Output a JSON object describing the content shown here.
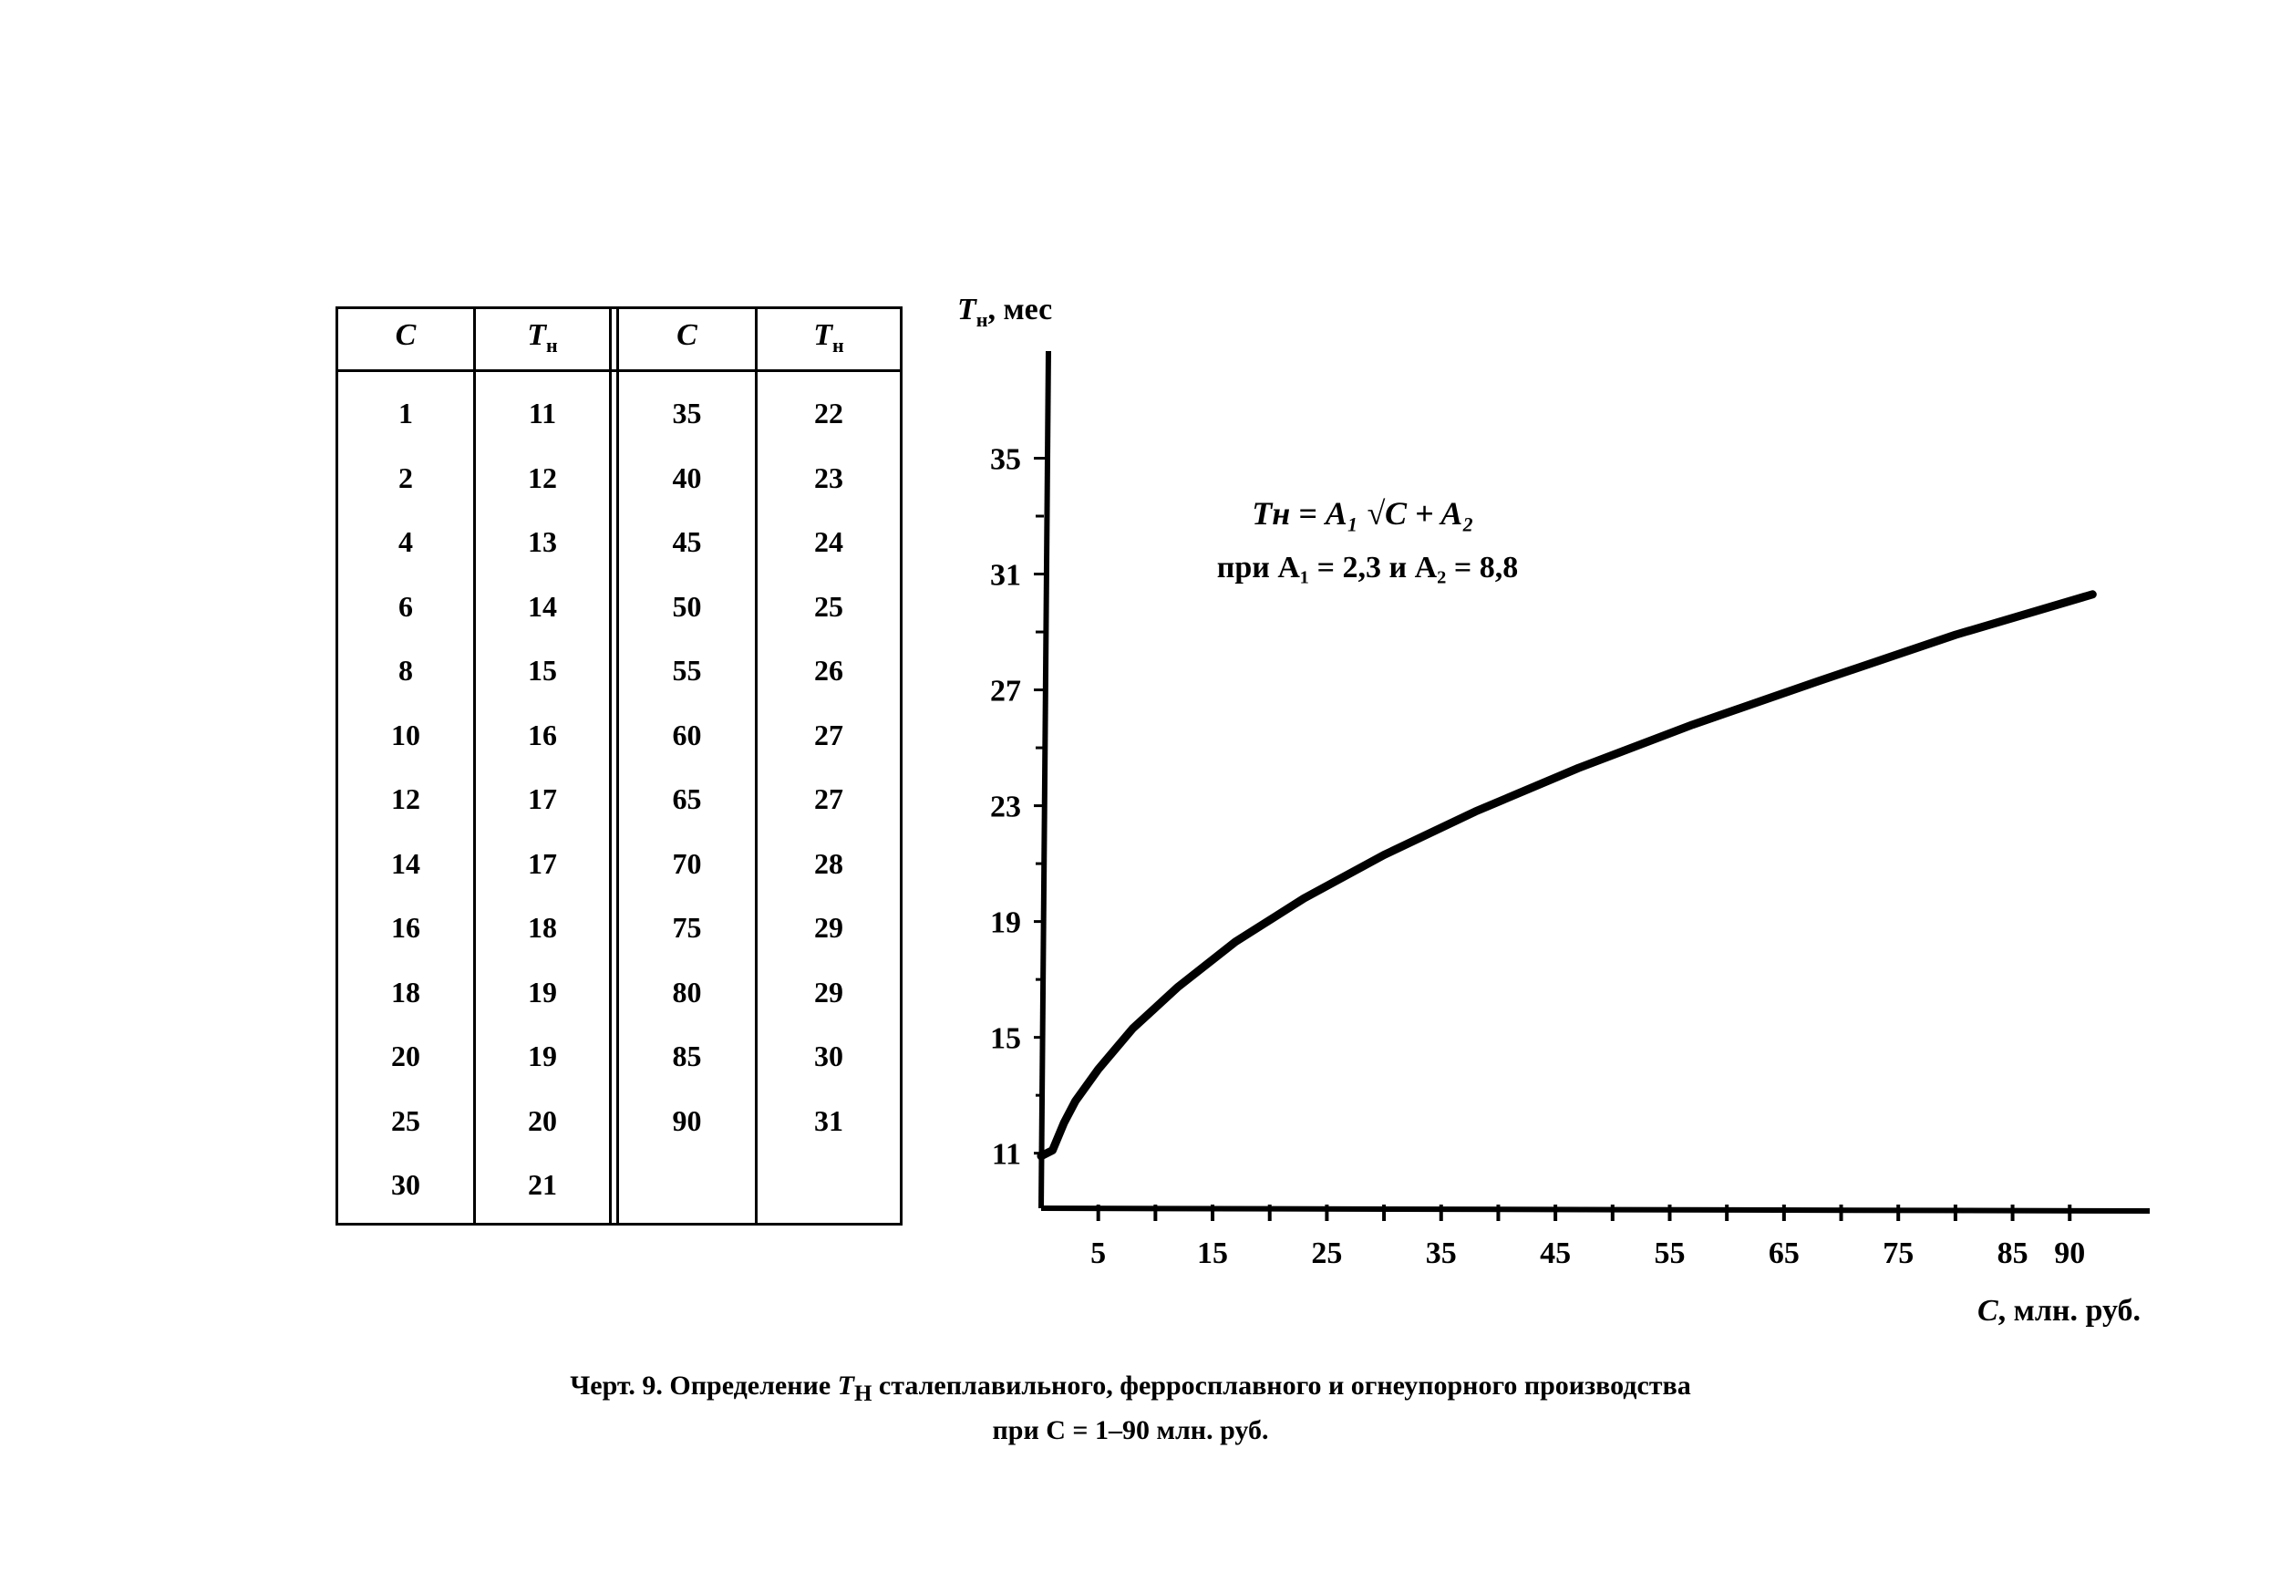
{
  "table": {
    "headers": [
      "C",
      "Тн",
      "C",
      "Тн"
    ],
    "left_columns": {
      "C": [
        "1",
        "2",
        "4",
        "6",
        "8",
        "10",
        "12",
        "14",
        "16",
        "18",
        "20",
        "25",
        "30"
      ],
      "T": [
        "11",
        "12",
        "13",
        "14",
        "15",
        "16",
        "17",
        "17",
        "18",
        "19",
        "19",
        "20",
        "21"
      ]
    },
    "right_columns": {
      "C": [
        "35",
        "40",
        "45",
        "50",
        "55",
        "60",
        "65",
        "70",
        "75",
        "80",
        "85",
        "90"
      ],
      "T": [
        "22",
        "23",
        "24",
        "25",
        "26",
        "27",
        "27",
        "28",
        "29",
        "29",
        "30",
        "31"
      ]
    }
  },
  "chart_data": {
    "type": "line",
    "y_axis_label": "Tн, мес",
    "x_axis_label": "C, млн. руб.",
    "formula_line1": "Tн = A₁ √C + A₂",
    "formula_line2": "при A₁ = 2,3 и A₂ = 8,8",
    "y_ticks": [
      11,
      15,
      19,
      23,
      27,
      31,
      35
    ],
    "x_ticks": [
      5,
      15,
      25,
      35,
      45,
      55,
      65,
      75,
      85,
      90
    ],
    "xlim": [
      0,
      97
    ],
    "ylim": [
      9.1,
      38.7
    ],
    "series": [
      {
        "x": [
          0,
          1,
          2,
          3,
          5,
          8,
          12,
          17,
          23,
          30,
          38,
          47,
          57,
          68,
          80,
          92
        ],
        "y": [
          10.9,
          11.1,
          12.05,
          12.8,
          13.9,
          15.3,
          16.75,
          18.3,
          19.8,
          21.3,
          22.8,
          24.3,
          25.8,
          27.3,
          28.9,
          30.3
        ]
      }
    ]
  },
  "caption": {
    "line1_pre": "Черт. 9. Определение ",
    "line1_var": "T",
    "line1_sub": "Н",
    "line1_post": " сталеплавильного, ферросплавного и огнеупорного производства",
    "line2": "при C = 1–90 млн. руб."
  }
}
